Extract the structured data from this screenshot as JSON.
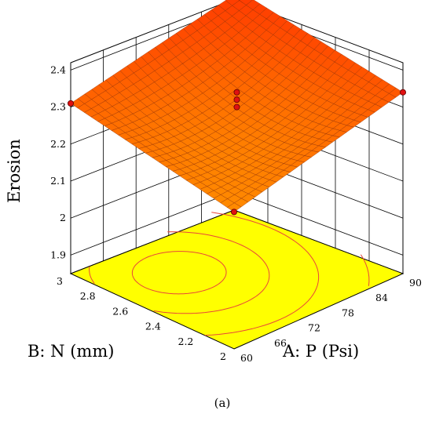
{
  "chart_data": {
    "type": "surface-3d",
    "title": "",
    "zlabel": "Erosion",
    "xlabel": "A: P (Psi)",
    "ylabel": "B: N (mm)",
    "caption": "(a)",
    "x_ticks": [
      "60",
      "66",
      "72",
      "78",
      "84",
      "90"
    ],
    "y_ticks": [
      "2",
      "2.2",
      "2.4",
      "2.6",
      "2.8",
      "3"
    ],
    "z_ticks": [
      "1.9",
      "2",
      "2.1",
      "2.2",
      "2.3",
      "2.4"
    ],
    "x_range": [
      60,
      90
    ],
    "y_range": [
      2,
      3
    ],
    "z_range": [
      1.85,
      2.42
    ],
    "surface": {
      "corners": [
        {
          "x": 60,
          "y": 2,
          "z": 2.22
        },
        {
          "x": 90,
          "y": 2,
          "z": 2.34
        },
        {
          "x": 60,
          "y": 3,
          "z": 2.31
        },
        {
          "x": 90,
          "y": 3,
          "z": 2.41
        }
      ],
      "center": {
        "x": 75,
        "y": 2.5,
        "z": 2.27
      }
    },
    "design_points": [
      {
        "x": 60,
        "y": 2,
        "z": 2.22
      },
      {
        "x": 90,
        "y": 2,
        "z": 2.34
      },
      {
        "x": 60,
        "y": 3,
        "z": 2.31
      },
      {
        "x": 90,
        "y": 3,
        "z": 2.41
      },
      {
        "x": 75,
        "y": 2.5,
        "z": 2.3
      },
      {
        "x": 75,
        "y": 2.5,
        "z": 2.32
      },
      {
        "x": 75,
        "y": 2.5,
        "z": 2.34
      }
    ],
    "grid": true,
    "colors": {
      "surface_low": "#ff8c00",
      "surface_high": "#ff3a00",
      "mesh": "#8a2a00",
      "floor": "#ffff00",
      "contour": "#e8463a",
      "point": "#e01010"
    }
  }
}
